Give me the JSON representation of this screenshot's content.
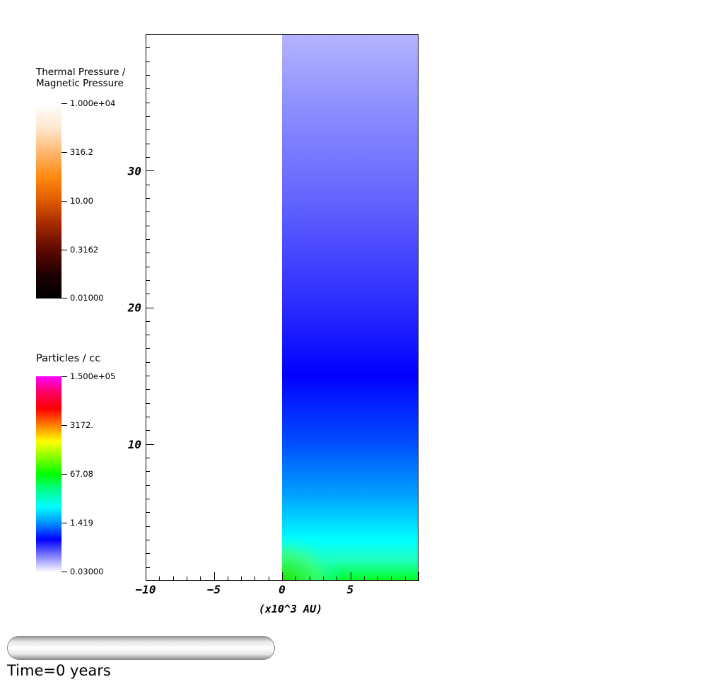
{
  "colorbars": [
    {
      "title_lines": [
        "Thermal Pressure /",
        "Magnetic Pressure"
      ],
      "labels": [
        "1.000e+04",
        "316.2",
        "10.00",
        "0.3162",
        "0.01000"
      ],
      "gradient": [
        "#ffffff",
        "#ffe8d0",
        "#ffb870",
        "#ff8a10",
        "#e05a00",
        "#a02800",
        "#600800",
        "#200000",
        "#000000"
      ]
    },
    {
      "title_lines": [
        "Particles / cc"
      ],
      "labels": [
        "1.500e+05",
        "3172.",
        "67.08",
        "1.419",
        "0.03000"
      ],
      "gradient": [
        "#ff00ff",
        "#ff0060",
        "#ff0000",
        "#ff8000",
        "#ffff00",
        "#80ff00",
        "#00ff00",
        "#00ff90",
        "#00ffff",
        "#0090ff",
        "#0000ff",
        "#8080ff",
        "#ffffff"
      ]
    }
  ],
  "chart_data": {
    "type": "heatmap",
    "x_ticks": [
      "−10",
      "−5",
      "0",
      "5"
    ],
    "y_ticks": [
      "10",
      "20",
      "30"
    ],
    "xlabel": "(x10^3 AU)",
    "ylabel": "",
    "xlim": [
      -10,
      10
    ],
    "ylim": [
      0,
      40
    ],
    "data_xrange": [
      0,
      10
    ],
    "field": "Particles / cc",
    "vertical_color_profile": [
      {
        "y": 0.0,
        "color": "#00ff20"
      },
      {
        "y": 1.5,
        "color": "#20ffc0"
      },
      {
        "y": 3.0,
        "color": "#00ffff"
      },
      {
        "y": 6.0,
        "color": "#00a8ff"
      },
      {
        "y": 10.0,
        "color": "#0050ff"
      },
      {
        "y": 15.0,
        "color": "#0000ff"
      },
      {
        "y": 20.0,
        "color": "#2a2aff"
      },
      {
        "y": 28.0,
        "color": "#6565ff"
      },
      {
        "y": 35.0,
        "color": "#9090ff"
      },
      {
        "y": 40.0,
        "color": "#b4b4ff"
      }
    ]
  },
  "progress": {
    "fraction": 0
  },
  "time_label": "Time=0 years"
}
